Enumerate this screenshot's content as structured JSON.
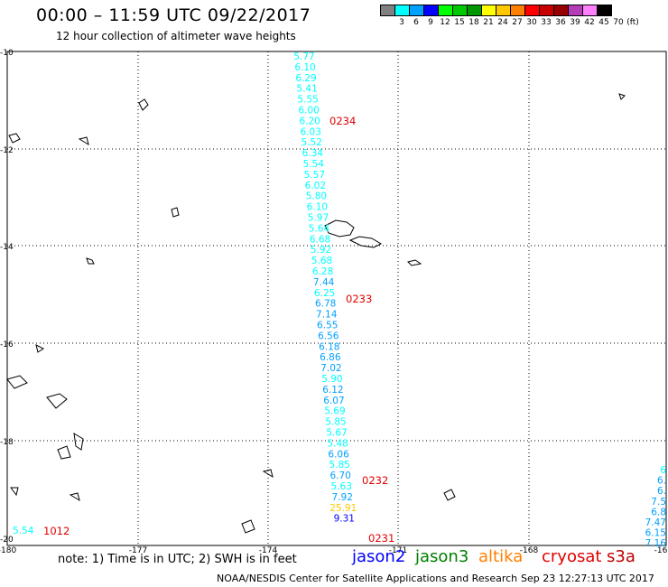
{
  "header": {
    "title": "00:00 – 11:59 UTC 09/22/2017",
    "subtitle": "12 hour collection of altimeter wave heights"
  },
  "legend": {
    "colors": [
      "#808080",
      "#00ffff",
      "#00a0ff",
      "#0000ff",
      "#00ff00",
      "#00c800",
      "#009600",
      "#ffff00",
      "#ffc800",
      "#ff7f00",
      "#ff0000",
      "#c80000",
      "#960000",
      "#b43cb4",
      "#ff80ff",
      "#000000"
    ],
    "labels": [
      "3",
      "6",
      "9",
      "12",
      "15",
      "18",
      "21",
      "24",
      "27",
      "30",
      "33",
      "36",
      "39",
      "42",
      "45",
      "70",
      "(ft)"
    ]
  },
  "axes": {
    "lat_labels": [
      "-10",
      "-12",
      "-14",
      "-16",
      "-18",
      "-20"
    ],
    "lon_labels": [
      "-180",
      "-177",
      "-174",
      "-171",
      "-168",
      "-16"
    ]
  },
  "tracks": [
    {
      "name": "main",
      "values": [
        "5.77",
        "6.10",
        "6.29",
        "5.41",
        "5.55",
        "6.00",
        "6.20",
        "6.03",
        "5.52",
        "6.34",
        "5.54",
        "5.57",
        "6.02",
        "5.80",
        "6.10",
        "5.97",
        "5.64",
        "6.68",
        "5.92",
        "5.68",
        "6.28",
        "7.44",
        "6.25",
        "6.78",
        "7.14",
        "6.55",
        "6.56",
        "6.18",
        "6.86",
        "7.02",
        "5.90",
        "6.12",
        "6.07",
        "5.69",
        "5.85",
        "5.67",
        "5.48",
        "6.06",
        "5.85",
        "6.70",
        "5.63",
        "7.92",
        "25.91",
        "9.31"
      ],
      "colors": [
        "#00ffff",
        "#00ffff",
        "#00ffff",
        "#00ffff",
        "#00ffff",
        "#00ffff",
        "#00ffff",
        "#00ffff",
        "#00ffff",
        "#00ffff",
        "#00ffff",
        "#00ffff",
        "#00ffff",
        "#00ffff",
        "#00ffff",
        "#00ffff",
        "#00ffff",
        "#00ffff",
        "#00ffff",
        "#00ffff",
        "#00ffff",
        "#00a0ff",
        "#00ffff",
        "#00a0ff",
        "#00a0ff",
        "#00a0ff",
        "#00a0ff",
        "#00a0ff",
        "#00a0ff",
        "#00a0ff",
        "#00ffff",
        "#00a0ff",
        "#00a0ff",
        "#00ffff",
        "#00ffff",
        "#00ffff",
        "#00ffff",
        "#00a0ff",
        "#00ffff",
        "#00a0ff",
        "#00ffff",
        "#00a0ff",
        "#ffc800",
        "#0000ff"
      ]
    },
    {
      "name": "right-edge",
      "values": [
        "6",
        "6.",
        "6.",
        "7.5",
        "6.8",
        "7.47",
        "6.15",
        "7.16"
      ],
      "colors": [
        "#00ffff",
        "#00a0ff",
        "#00a0ff",
        "#00a0ff",
        "#00a0ff",
        "#00a0ff",
        "#00a0ff",
        "#00a0ff"
      ]
    }
  ],
  "time_labels": [
    "0234",
    "0233",
    "0232",
    "0231",
    "1012"
  ],
  "left_value": "5.54",
  "notes": "note: 1) Time is in UTC; 2) SWH is in feet",
  "satellites": [
    {
      "name": "jason2",
      "color": "#0000ff"
    },
    {
      "name": "jason3",
      "color": "#008000"
    },
    {
      "name": "altika",
      "color": "#ff8000"
    },
    {
      "name": "cryosat",
      "color": "#e00000"
    },
    {
      "name": "s3a",
      "color": "#c00000"
    }
  ],
  "footer": {
    "center": "NOAA/NESDIS Center for Satellite Applications and Research",
    "timestamp": "Sep 23 12:27:13 UTC 2017"
  }
}
